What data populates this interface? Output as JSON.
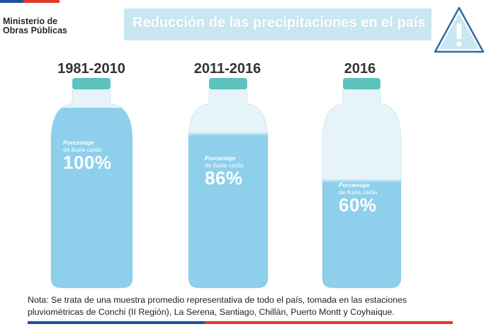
{
  "header": {
    "ministry_line1": "Ministerio de",
    "ministry_line2": "Obras Públicas",
    "title": "Reducción de las precipitaciones en el país"
  },
  "colors": {
    "flag_blue": "#1f4e9b",
    "flag_red": "#e0392b",
    "water": "#8ecfec",
    "bottle_empty": "#e6f3f9",
    "cap": "#5cc3be",
    "title_bar": "#c9e7f3"
  },
  "chart_data": {
    "type": "bar",
    "title": "Reducción de las precipitaciones en el país",
    "categories": [
      "1981-2010",
      "2011-2016",
      "2016"
    ],
    "values": [
      100,
      86,
      60
    ],
    "value_labels": [
      "100%",
      "86%",
      "60%"
    ],
    "unit": "%",
    "label_line1": "Porcentaje",
    "label_line2": "de lluvia caída",
    "ylim": [
      0,
      100
    ]
  },
  "note": {
    "line1": "Nota: Se trata de una muestra promedio representativa de todo el país, tomada en las estaciones",
    "line2": "pluviométricas de Conchi (II Región), La Serena, Santiago, Chillán, Puerto Montt y Coyhaique."
  }
}
